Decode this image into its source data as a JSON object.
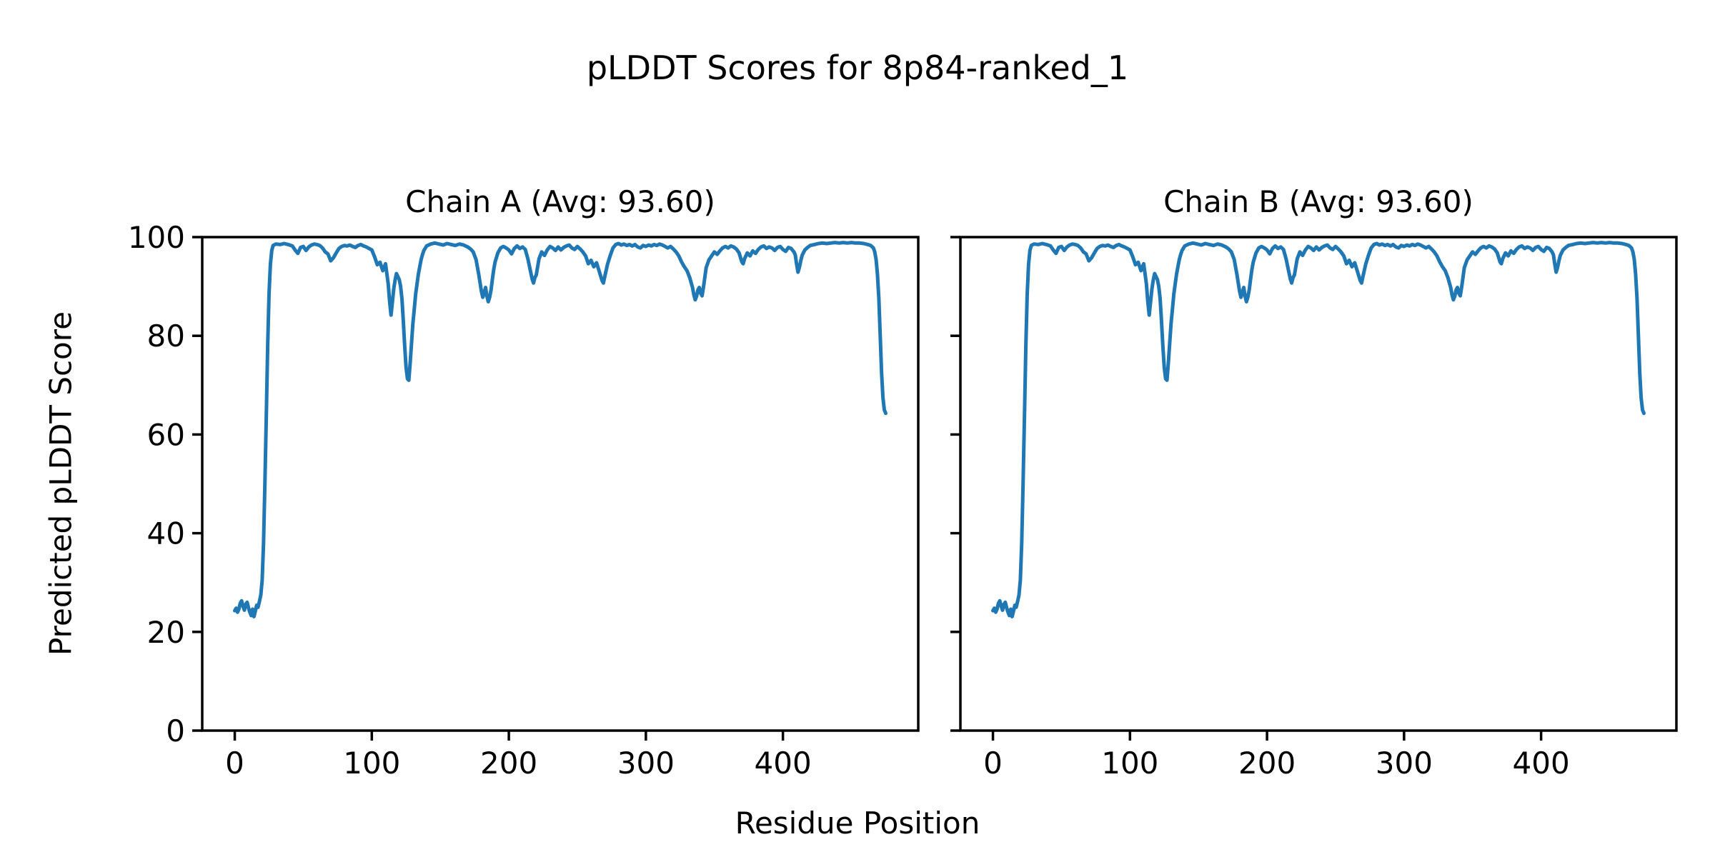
{
  "figure": {
    "suptitle": "pLDDT Scores for 8p84-ranked_1"
  },
  "chart_data": {
    "type": "line",
    "title": "pLDDT Scores for 8p84-ranked_1",
    "xlabel": "Residue Position",
    "ylabel": "Predicted pLDDT Score",
    "line_color": "#1f77b4",
    "background_color": "#ffffff",
    "grid": false,
    "legend": "none",
    "xlim": [
      -23.75,
      498.75
    ],
    "ylim": [
      0,
      100
    ],
    "xticks": [
      0,
      100,
      200,
      300,
      400
    ],
    "yticks": [
      0,
      20,
      40,
      60,
      80,
      100
    ],
    "subplots": [
      {
        "title": "Chain A (Avg: 93.60)",
        "chain": "A",
        "avg": 93.6
      },
      {
        "title": "Chain B (Avg: 93.60)",
        "chain": "B",
        "avg": 93.6
      }
    ],
    "note": "Both subplots plot an identical pLDDT-per-residue series (values estimated from pixels)",
    "points": [
      [
        0,
        24.3
      ],
      [
        1,
        24.8
      ],
      [
        2,
        24.0
      ],
      [
        3,
        24.6
      ],
      [
        4,
        25.8
      ],
      [
        5,
        26.3
      ],
      [
        6,
        25.2
      ],
      [
        7,
        24.4
      ],
      [
        8,
        25.6
      ],
      [
        9,
        26.0
      ],
      [
        10,
        24.9
      ],
      [
        11,
        24.0
      ],
      [
        12,
        23.3
      ],
      [
        13,
        24.6
      ],
      [
        14,
        23.1
      ],
      [
        15,
        24.2
      ],
      [
        16,
        25.4
      ],
      [
        17,
        25.0
      ],
      [
        18,
        26.2
      ],
      [
        19,
        27.5
      ],
      [
        20,
        30.5
      ],
      [
        21,
        38.0
      ],
      [
        22,
        50.0
      ],
      [
        23,
        64.0
      ],
      [
        24,
        78.0
      ],
      [
        25,
        88.5
      ],
      [
        26,
        94.5
      ],
      [
        27,
        97.3
      ],
      [
        28,
        98.3
      ],
      [
        30,
        98.6
      ],
      [
        33,
        98.5
      ],
      [
        36,
        98.7
      ],
      [
        39,
        98.5
      ],
      [
        42,
        98.2
      ],
      [
        44,
        97.4
      ],
      [
        46,
        96.7
      ],
      [
        48,
        97.9
      ],
      [
        50,
        98.1
      ],
      [
        52,
        97.3
      ],
      [
        54,
        98.0
      ],
      [
        56,
        98.4
      ],
      [
        58,
        98.6
      ],
      [
        60,
        98.5
      ],
      [
        62,
        98.3
      ],
      [
        64,
        97.8
      ],
      [
        66,
        97.0
      ],
      [
        68,
        96.6
      ],
      [
        70,
        95.2
      ],
      [
        72,
        95.8
      ],
      [
        74,
        96.8
      ],
      [
        76,
        97.7
      ],
      [
        78,
        98.1
      ],
      [
        80,
        98.3
      ],
      [
        82,
        98.2
      ],
      [
        84,
        98.4
      ],
      [
        86,
        98.1
      ],
      [
        88,
        97.9
      ],
      [
        90,
        98.3
      ],
      [
        92,
        98.5
      ],
      [
        94,
        98.2
      ],
      [
        96,
        98.0
      ],
      [
        98,
        97.7
      ],
      [
        100,
        97.4
      ],
      [
        102,
        96.0
      ],
      [
        104,
        94.4
      ],
      [
        106,
        94.9
      ],
      [
        108,
        93.2
      ],
      [
        110,
        94.6
      ],
      [
        112,
        90.5
      ],
      [
        113,
        87.0
      ],
      [
        114,
        84.2
      ],
      [
        115,
        86.8
      ],
      [
        116,
        89.5
      ],
      [
        117,
        91.3
      ],
      [
        118,
        92.6
      ],
      [
        119,
        92.0
      ],
      [
        120,
        91.4
      ],
      [
        121,
        90.0
      ],
      [
        122,
        87.5
      ],
      [
        123,
        83.0
      ],
      [
        124,
        78.0
      ],
      [
        125,
        73.5
      ],
      [
        126,
        71.3
      ],
      [
        127,
        71.0
      ],
      [
        128,
        74.5
      ],
      [
        129,
        78.5
      ],
      [
        130,
        82.5
      ],
      [
        131,
        85.5
      ],
      [
        132,
        88.5
      ],
      [
        133,
        90.5
      ],
      [
        134,
        92.5
      ],
      [
        135,
        94.0
      ],
      [
        136,
        95.5
      ],
      [
        137,
        96.5
      ],
      [
        138,
        97.3
      ],
      [
        140,
        98.2
      ],
      [
        143,
        98.6
      ],
      [
        146,
        98.8
      ],
      [
        149,
        98.6
      ],
      [
        152,
        98.4
      ],
      [
        155,
        98.7
      ],
      [
        158,
        98.5
      ],
      [
        161,
        98.3
      ],
      [
        164,
        98.6
      ],
      [
        167,
        98.4
      ],
      [
        170,
        98.0
      ],
      [
        172,
        97.6
      ],
      [
        174,
        97.0
      ],
      [
        176,
        95.5
      ],
      [
        178,
        92.5
      ],
      [
        180,
        89.0
      ],
      [
        181,
        87.8
      ],
      [
        182,
        88.8
      ],
      [
        183,
        89.8
      ],
      [
        184,
        88.0
      ],
      [
        185,
        86.9
      ],
      [
        186,
        87.8
      ],
      [
        187,
        89.3
      ],
      [
        188,
        91.5
      ],
      [
        189,
        93.5
      ],
      [
        190,
        95.0
      ],
      [
        192,
        96.8
      ],
      [
        194,
        97.8
      ],
      [
        196,
        98.1
      ],
      [
        198,
        97.8
      ],
      [
        200,
        97.4
      ],
      [
        202,
        96.6
      ],
      [
        204,
        97.7
      ],
      [
        206,
        98.2
      ],
      [
        208,
        97.7
      ],
      [
        210,
        98.0
      ],
      [
        212,
        97.5
      ],
      [
        214,
        95.5
      ],
      [
        216,
        92.8
      ],
      [
        217,
        91.5
      ],
      [
        218,
        90.7
      ],
      [
        219,
        91.8
      ],
      [
        220,
        92.3
      ],
      [
        221,
        94.0
      ],
      [
        222,
        95.6
      ],
      [
        224,
        97.0
      ],
      [
        226,
        96.3
      ],
      [
        228,
        97.4
      ],
      [
        230,
        98.1
      ],
      [
        232,
        97.8
      ],
      [
        234,
        97.3
      ],
      [
        236,
        98.0
      ],
      [
        238,
        97.4
      ],
      [
        240,
        97.9
      ],
      [
        242,
        98.2
      ],
      [
        244,
        98.4
      ],
      [
        246,
        97.8
      ],
      [
        248,
        97.5
      ],
      [
        250,
        98.1
      ],
      [
        252,
        97.6
      ],
      [
        254,
        97.0
      ],
      [
        256,
        96.2
      ],
      [
        258,
        94.6
      ],
      [
        260,
        95.3
      ],
      [
        262,
        94.0
      ],
      [
        264,
        94.8
      ],
      [
        266,
        93.0
      ],
      [
        268,
        91.2
      ],
      [
        269,
        90.7
      ],
      [
        270,
        92.0
      ],
      [
        272,
        94.5
      ],
      [
        274,
        96.3
      ],
      [
        276,
        97.8
      ],
      [
        278,
        98.5
      ],
      [
        280,
        98.7
      ],
      [
        282,
        98.4
      ],
      [
        284,
        98.6
      ],
      [
        286,
        98.3
      ],
      [
        288,
        98.5
      ],
      [
        290,
        98.2
      ],
      [
        292,
        98.5
      ],
      [
        294,
        98.0
      ],
      [
        296,
        97.8
      ],
      [
        298,
        98.3
      ],
      [
        300,
        98.1
      ],
      [
        302,
        98.4
      ],
      [
        304,
        98.2
      ],
      [
        306,
        98.5
      ],
      [
        308,
        98.3
      ],
      [
        310,
        98.6
      ],
      [
        312,
        98.4
      ],
      [
        314,
        98.1
      ],
      [
        316,
        97.8
      ],
      [
        318,
        98.1
      ],
      [
        320,
        97.6
      ],
      [
        322,
        97.0
      ],
      [
        324,
        96.2
      ],
      [
        326,
        95.0
      ],
      [
        328,
        94.0
      ],
      [
        330,
        93.2
      ],
      [
        332,
        91.8
      ],
      [
        334,
        89.8
      ],
      [
        335,
        88.3
      ],
      [
        336,
        87.3
      ],
      [
        337,
        88.0
      ],
      [
        338,
        89.3
      ],
      [
        339,
        89.8
      ],
      [
        340,
        88.6
      ],
      [
        341,
        88.1
      ],
      [
        342,
        89.8
      ],
      [
        343,
        91.8
      ],
      [
        344,
        93.8
      ],
      [
        346,
        95.4
      ],
      [
        348,
        96.2
      ],
      [
        350,
        97.0
      ],
      [
        352,
        96.5
      ],
      [
        354,
        97.2
      ],
      [
        356,
        97.8
      ],
      [
        358,
        98.1
      ],
      [
        360,
        97.8
      ],
      [
        362,
        98.2
      ],
      [
        364,
        98.0
      ],
      [
        366,
        97.6
      ],
      [
        368,
        96.8
      ],
      [
        370,
        95.0
      ],
      [
        371,
        94.6
      ],
      [
        372,
        95.6
      ],
      [
        374,
        96.8
      ],
      [
        376,
        96.2
      ],
      [
        378,
        97.2
      ],
      [
        380,
        96.7
      ],
      [
        382,
        97.5
      ],
      [
        384,
        98.0
      ],
      [
        386,
        98.2
      ],
      [
        388,
        97.7
      ],
      [
        390,
        98.0
      ],
      [
        392,
        97.8
      ],
      [
        394,
        97.3
      ],
      [
        396,
        97.9
      ],
      [
        398,
        98.1
      ],
      [
        400,
        97.5
      ],
      [
        402,
        97.1
      ],
      [
        404,
        97.9
      ],
      [
        406,
        97.7
      ],
      [
        408,
        97.0
      ],
      [
        409,
        96.4
      ],
      [
        410,
        94.5
      ],
      [
        411,
        92.9
      ],
      [
        412,
        93.8
      ],
      [
        413,
        95.2
      ],
      [
        414,
        96.3
      ],
      [
        416,
        97.4
      ],
      [
        418,
        97.9
      ],
      [
        420,
        98.3
      ],
      [
        423,
        98.5
      ],
      [
        426,
        98.7
      ],
      [
        429,
        98.8
      ],
      [
        432,
        98.7
      ],
      [
        435,
        98.8
      ],
      [
        438,
        98.9
      ],
      [
        441,
        98.8
      ],
      [
        444,
        98.9
      ],
      [
        447,
        98.8
      ],
      [
        450,
        98.9
      ],
      [
        453,
        98.8
      ],
      [
        456,
        98.8
      ],
      [
        459,
        98.7
      ],
      [
        462,
        98.5
      ],
      [
        464,
        98.3
      ],
      [
        466,
        97.8
      ],
      [
        467,
        97.0
      ],
      [
        468,
        95.5
      ],
      [
        469,
        92.5
      ],
      [
        470,
        87.5
      ],
      [
        471,
        80.0
      ],
      [
        472,
        72.5
      ],
      [
        473,
        67.5
      ],
      [
        474,
        65.0
      ],
      [
        475,
        64.3
      ]
    ]
  }
}
